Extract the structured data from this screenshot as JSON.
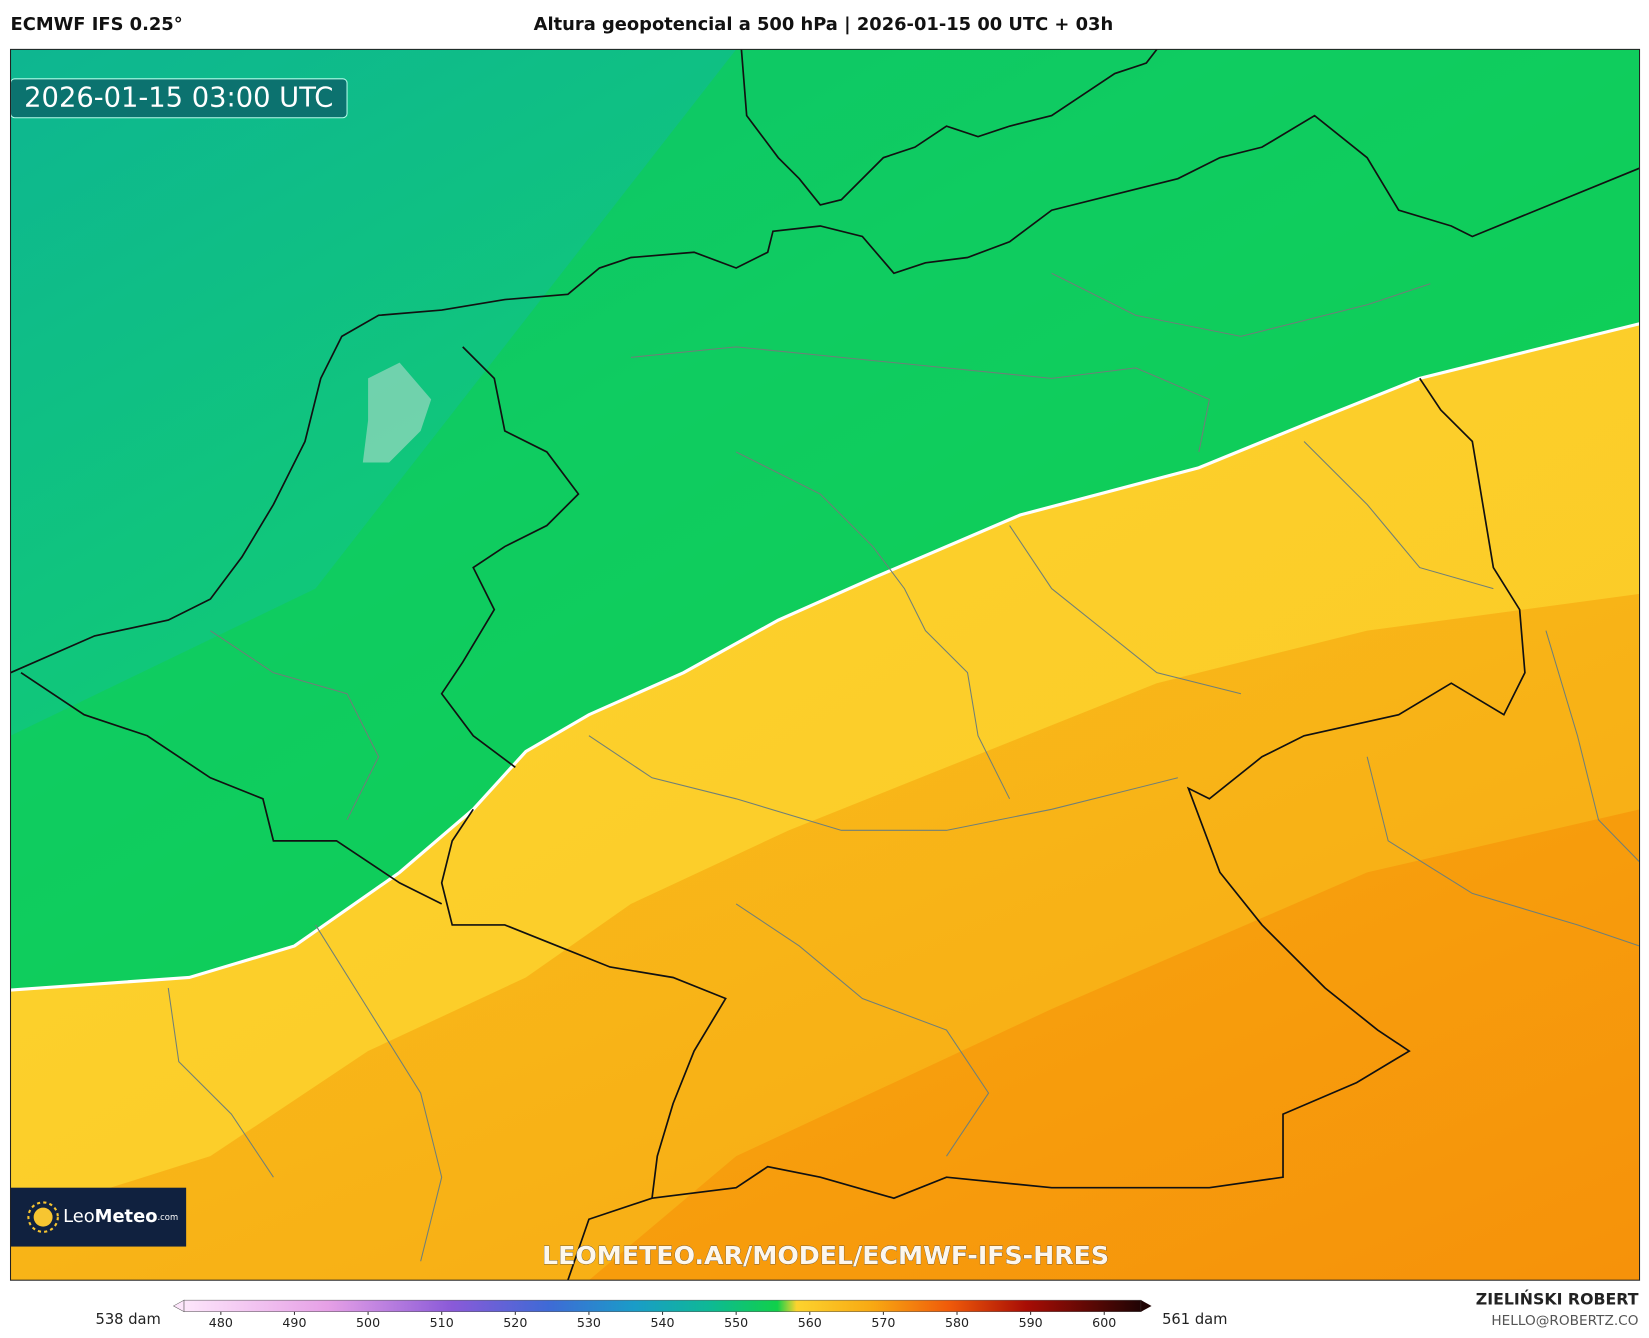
{
  "header": {
    "model": "ECMWF IFS 0.25°",
    "title": "Altura geopotencial a 500 hPa | 2026-01-15 00 UTC + 03h"
  },
  "map": {
    "valid_time": "2026-01-15 03:00 UTC",
    "watermark": "LEOMETEO.AR/MODEL/ECMWF-IFS-HRES",
    "logo": {
      "brand": "Leo",
      "brand_bold": "Meteo",
      "suffix": ".com"
    }
  },
  "colorbar": {
    "min_label": "538 dam",
    "max_label": "561 dam",
    "lim": [
      475,
      605
    ],
    "ticks": [
      480,
      490,
      500,
      510,
      520,
      530,
      540,
      550,
      560,
      570,
      580,
      590,
      600
    ]
  },
  "credits": {
    "author": "ZIELIŃSKI ROBERT",
    "contact": "HELLO@ROBERTZ.CO"
  }
}
